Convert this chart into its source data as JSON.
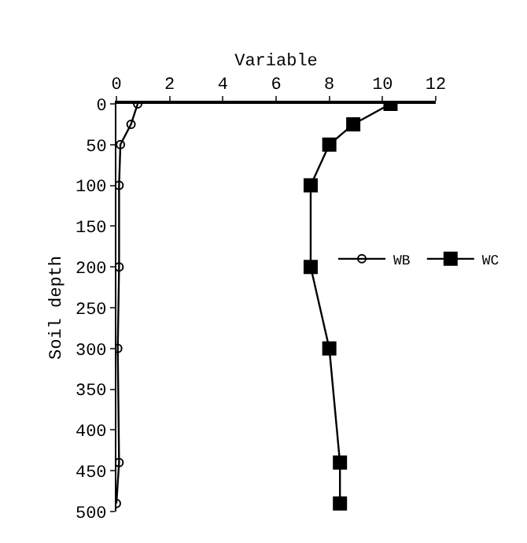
{
  "chart_data": {
    "type": "line",
    "xlabel": "Variable",
    "ylabel": "Soil depth",
    "xlim": [
      0,
      12
    ],
    "xticks": [
      0,
      2,
      4,
      6,
      8,
      10,
      12
    ],
    "ylim": [
      500,
      0
    ],
    "yticks": [
      0,
      50,
      100,
      150,
      200,
      250,
      300,
      350,
      400,
      450,
      500
    ],
    "grid": false,
    "legend": "right",
    "line_style": "solid",
    "series": [
      {
        "name": "WB",
        "color": "#000000",
        "marker": "circle",
        "x": [
          0.8,
          0.55,
          0.15,
          0.1,
          0.1,
          0.05,
          0.1,
          0
        ],
        "values": [
          0,
          25,
          50,
          100,
          200,
          300,
          440,
          490
        ]
      },
      {
        "name": "WC",
        "color": "#000000",
        "marker": "square",
        "x": [
          10.3,
          8.9,
          8.0,
          7.3,
          7.3,
          8.0,
          8.4,
          8.4
        ],
        "values": [
          0,
          25,
          50,
          100,
          200,
          300,
          440,
          490
        ]
      }
    ]
  }
}
